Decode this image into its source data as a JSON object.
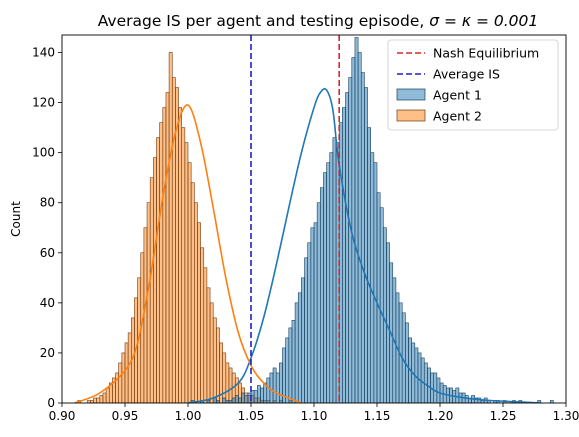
{
  "chart_data": {
    "type": "histogram",
    "title": "Average IS per agent and testing episode, σ = κ = 0.001",
    "title_prefix": "Average IS per agent and testing episode, ",
    "title_math": "σ = κ = 0.001",
    "xlabel": "",
    "ylabel": "Count",
    "xlim": [
      0.9,
      1.3
    ],
    "ylim": [
      0,
      147
    ],
    "x_ticks": [
      0.9,
      0.95,
      1.0,
      1.05,
      1.1,
      1.15,
      1.2,
      1.25,
      1.3
    ],
    "x_tick_labels": [
      "0.90",
      "0.95",
      "1.00",
      "1.05",
      "1.10",
      "1.15",
      "1.20",
      "1.25",
      "1.30"
    ],
    "y_ticks": [
      0,
      20,
      40,
      60,
      80,
      100,
      120,
      140
    ],
    "y_tick_labels": [
      "0",
      "20",
      "40",
      "60",
      "80",
      "100",
      "120",
      "140"
    ],
    "grid": false,
    "legend_position": "upper right",
    "vlines": [
      {
        "name": "Nash Equilibrium",
        "x": 1.12,
        "color": "#d62728"
      },
      {
        "name": "Average IS",
        "x": 1.05,
        "color": "#1f1fcc"
      }
    ],
    "series": [
      {
        "name": "Agent 1",
        "color": "#1f77b4",
        "bin_start": 1.0025,
        "bin_width": 0.0025,
        "counts": [
          1,
          0,
          0,
          1,
          0,
          1,
          0,
          2,
          1,
          0,
          2,
          1,
          1,
          2,
          3,
          2,
          4,
          3,
          4,
          5,
          5,
          7,
          6,
          8,
          10,
          12,
          14,
          12,
          16,
          22,
          26,
          30,
          33,
          40,
          44,
          50,
          58,
          64,
          70,
          72,
          80,
          86,
          92,
          96,
          100,
          106,
          104,
          112,
          118,
          124,
          130,
          138,
          146,
          140,
          132,
          126,
          110,
          100,
          96,
          84,
          78,
          70,
          64,
          56,
          50,
          44,
          40,
          36,
          32,
          26,
          24,
          22,
          20,
          18,
          16,
          14,
          12,
          12,
          10,
          8,
          7,
          6,
          6,
          5,
          6,
          4,
          4,
          3,
          2,
          3,
          2,
          2,
          1,
          2,
          1,
          0,
          1,
          1,
          0,
          1,
          0,
          0,
          1,
          0,
          1,
          0,
          0,
          0,
          0,
          0,
          1,
          0,
          0,
          0,
          1,
          0,
          0,
          0,
          0,
          1
        ],
        "kde_x": [
          1.0,
          1.02,
          1.04,
          1.05,
          1.06,
          1.07,
          1.08,
          1.09,
          1.1,
          1.105,
          1.11,
          1.115,
          1.12,
          1.13,
          1.14,
          1.15,
          1.16,
          1.17,
          1.18,
          1.19,
          1.2,
          1.22,
          1.24,
          1.26,
          1.28
        ],
        "kde_y": [
          0,
          2,
          8,
          18,
          34,
          55,
          78,
          100,
          118,
          124,
          125,
          117,
          95,
          68,
          52,
          40,
          29,
          18,
          11,
          7,
          4,
          2,
          1,
          0.5,
          0
        ]
      },
      {
        "name": "Agent 2",
        "color": "#ff7f0e",
        "bin_start": 0.9125,
        "bin_width": 0.0025,
        "counts": [
          1,
          0,
          0,
          1,
          1,
          2,
          2,
          3,
          4,
          6,
          8,
          10,
          12,
          16,
          20,
          24,
          28,
          34,
          42,
          50,
          60,
          70,
          80,
          90,
          98,
          106,
          112,
          118,
          124,
          140,
          130,
          126,
          118,
          110,
          104,
          96,
          88,
          80,
          72,
          62,
          54,
          46,
          40,
          34,
          30,
          24,
          20,
          16,
          14,
          12,
          10,
          8,
          6,
          4,
          3,
          3,
          2,
          2,
          1,
          1,
          1,
          0,
          1,
          0,
          1,
          0,
          0,
          1
        ],
        "kde_x": [
          0.91,
          0.93,
          0.95,
          0.96,
          0.97,
          0.98,
          0.99,
          1.0,
          1.01,
          1.02,
          1.03,
          1.04,
          1.05,
          1.06,
          1.07,
          1.08,
          1.09
        ],
        "kde_y": [
          0,
          4,
          13,
          24,
          50,
          82,
          108,
          119,
          104,
          78,
          50,
          28,
          15,
          8,
          4,
          2,
          0
        ]
      }
    ]
  }
}
